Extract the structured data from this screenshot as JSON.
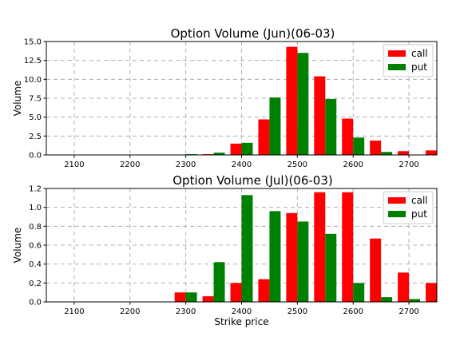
{
  "chart_data": [
    {
      "type": "bar",
      "title": "Option Volume (Jun)(06-03)",
      "xlabel": "",
      "ylabel": "Volume",
      "xlim": [
        2050,
        2750
      ],
      "ylim": [
        0,
        15
      ],
      "xticks": [
        "2100",
        "2200",
        "2300",
        "2400",
        "2500",
        "2600",
        "2700"
      ],
      "yticks": [
        "0.0",
        "2.5",
        "5.0",
        "7.5",
        "10.0",
        "12.5",
        "15.0"
      ],
      "grid": true,
      "legend": "top-right",
      "categories": [
        2300,
        2350,
        2400,
        2450,
        2500,
        2550,
        2600,
        2650,
        2700,
        2750
      ],
      "series": [
        {
          "name": "call",
          "color": "#ff0000",
          "values": [
            0,
            0.1,
            1.5,
            4.7,
            14.3,
            10.4,
            4.8,
            1.9,
            0.5,
            0.6
          ]
        },
        {
          "name": "put",
          "color": "#008000",
          "values": [
            0.1,
            0.3,
            1.6,
            7.6,
            13.5,
            7.4,
            2.3,
            0.4,
            0.05,
            0
          ]
        }
      ]
    },
    {
      "type": "bar",
      "title": "Option Volume (Jul)(06-03)",
      "xlabel": "Strike price",
      "ylabel": "Volume",
      "xlim": [
        2050,
        2750
      ],
      "ylim": [
        0,
        1.2
      ],
      "xticks": [
        "2100",
        "2200",
        "2300",
        "2400",
        "2500",
        "2600",
        "2700"
      ],
      "yticks": [
        "0.0",
        "0.2",
        "0.4",
        "0.6",
        "0.8",
        "1.0",
        "1.2"
      ],
      "grid": true,
      "legend": "top-right",
      "categories": [
        2300,
        2350,
        2400,
        2450,
        2500,
        2550,
        2600,
        2650,
        2700,
        2750
      ],
      "series": [
        {
          "name": "call",
          "color": "#ff0000",
          "values": [
            0.1,
            0.06,
            0.2,
            0.24,
            0.94,
            1.16,
            1.16,
            0.67,
            0.31,
            0.2
          ]
        },
        {
          "name": "put",
          "color": "#008000",
          "values": [
            0.1,
            0.42,
            1.13,
            0.96,
            0.85,
            0.72,
            0.2,
            0.05,
            0.03,
            0
          ]
        }
      ]
    }
  ]
}
